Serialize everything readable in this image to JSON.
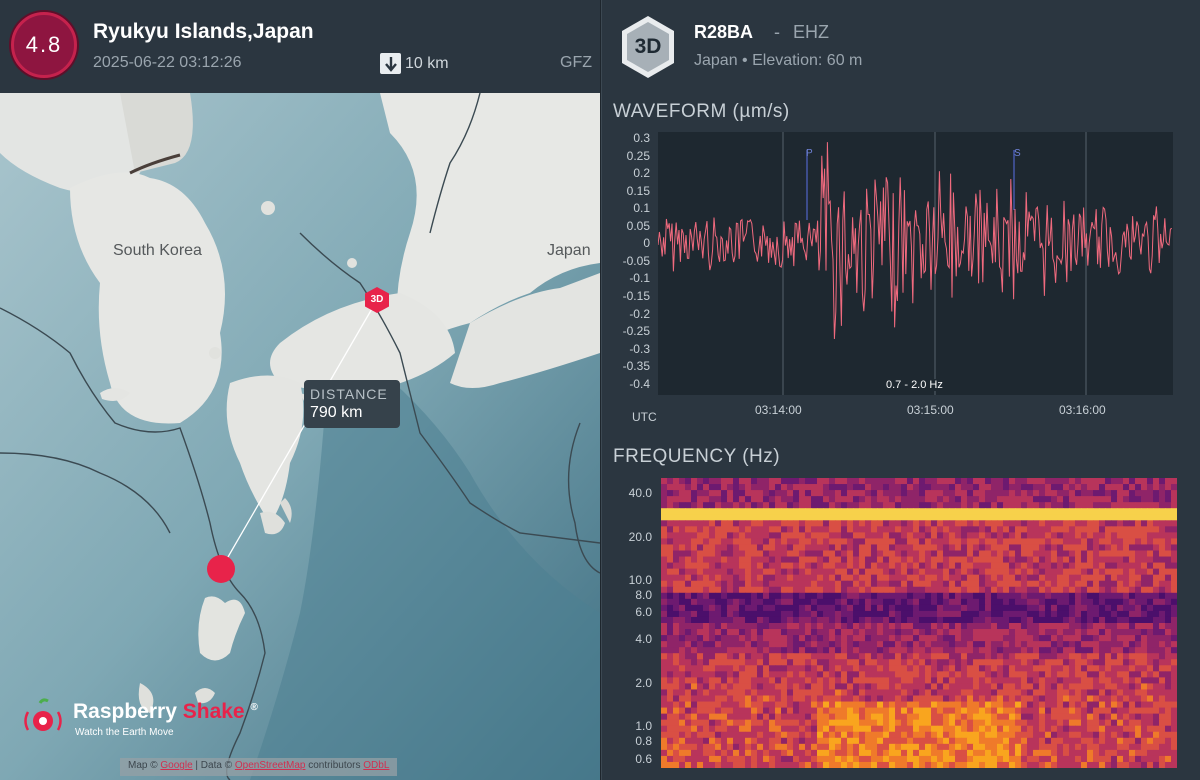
{
  "event": {
    "magnitude": "4.8",
    "title": "Ryukyu Islands,Japan",
    "datetime": "2025-06-22 03:12:26",
    "depth": "10 km",
    "source": "GFZ",
    "badge_color": "#8e1540"
  },
  "map": {
    "labels": {
      "south_korea": "South Korea",
      "japan": "Japan"
    },
    "station_marker": "3D",
    "distance_label": "DISTANCE",
    "distance_value": "790 km",
    "attribution": {
      "map_prefix": "Map ©",
      "map_link": "Google",
      "data_prefix": "| Data ©",
      "data_link": "OpenStreetMap",
      "contributors": "contributors",
      "osm": "ODbL"
    },
    "brand": {
      "name_part1": "Raspberry",
      "name_part2": "Shake",
      "registered": "®",
      "tagline": "Watch the Earth Move"
    },
    "epicenter_color": "#e8234a"
  },
  "station": {
    "badge": "3D",
    "code": "R28BA",
    "separator": "-",
    "channel": "EHZ",
    "location": "Japan • Elevation: 60 m"
  },
  "waveform": {
    "title": "WAVEFORM (µm/s)",
    "filter": "0.7 - 2.0 Hz",
    "utc_label": "UTC",
    "phase_p": "P",
    "phase_s": "S",
    "y_ticks": [
      "0.3",
      "0.25",
      "0.2",
      "0.15",
      "0.1",
      "0.05",
      "0",
      "-0.05",
      "-0.1",
      "-0.15",
      "-0.2",
      "-0.25",
      "-0.3",
      "-0.35",
      "-0.4"
    ],
    "x_ticks": [
      "03:14:00",
      "03:15:00",
      "03:16:00"
    ],
    "color": "#f06a7e"
  },
  "frequency": {
    "title": "FREQUENCY (Hz)",
    "y_ticks": [
      "40.0",
      "20.0",
      "10.0",
      "8.0",
      "6.0",
      "4.0",
      "2.0",
      "1.0",
      "0.8",
      "0.6"
    ]
  }
}
